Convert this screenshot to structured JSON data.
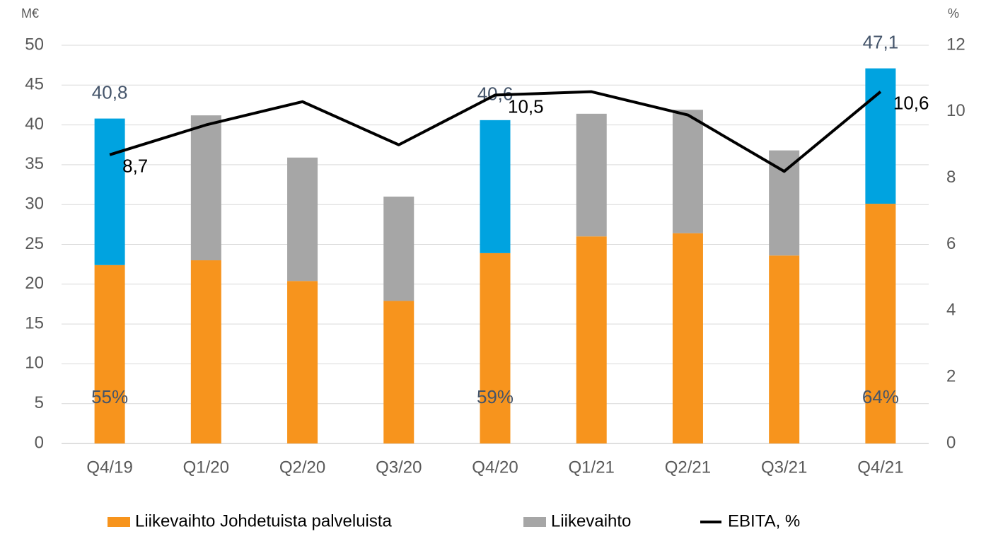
{
  "chart_data": {
    "type": "bar",
    "y_label": "M€",
    "y2_label": "%",
    "categories": [
      "Q4/19",
      "Q1/20",
      "Q2/20",
      "Q3/20",
      "Q4/20",
      "Q1/21",
      "Q2/21",
      "Q3/21",
      "Q4/21"
    ],
    "series": [
      {
        "name": "Liikevaihto Johdetuista palveluista",
        "color": "#f7941d",
        "type": "bar",
        "values": [
          22.4,
          23.0,
          20.4,
          17.9,
          23.9,
          26.0,
          26.4,
          23.6,
          30.1
        ],
        "value_labels": [
          "55%",
          null,
          null,
          null,
          "59%",
          null,
          null,
          null,
          "64%"
        ]
      },
      {
        "name": "Liikevaihto",
        "color": "#a6a6a6",
        "type": "bar",
        "colors": [
          "#00a3e0",
          "#a6a6a6",
          "#a6a6a6",
          "#a6a6a6",
          "#00a3e0",
          "#a6a6a6",
          "#a6a6a6",
          "#a6a6a6",
          "#00a3e0"
        ],
        "values": [
          18.4,
          18.2,
          15.5,
          13.1,
          16.7,
          15.4,
          15.5,
          13.2,
          17.0
        ],
        "total_labels": [
          "40,8",
          null,
          null,
          null,
          "40,6",
          null,
          null,
          null,
          "47,1"
        ]
      },
      {
        "name": "EBITA, %",
        "color": "#000000",
        "type": "line",
        "axis": "y2",
        "values": [
          8.7,
          9.6,
          10.3,
          9.0,
          10.5,
          10.6,
          9.9,
          8.2,
          10.6
        ],
        "value_labels": [
          "8,7",
          null,
          null,
          null,
          "10,5",
          null,
          null,
          null,
          "10,6"
        ]
      }
    ],
    "ylim": [
      0,
      50
    ],
    "yticks": [
      0,
      5,
      10,
      15,
      20,
      25,
      30,
      35,
      40,
      45,
      50
    ],
    "y2lim": [
      0,
      12
    ],
    "y2ticks": [
      0,
      2,
      4,
      6,
      8,
      10,
      12
    ],
    "grid": true,
    "legend": "bottom"
  }
}
